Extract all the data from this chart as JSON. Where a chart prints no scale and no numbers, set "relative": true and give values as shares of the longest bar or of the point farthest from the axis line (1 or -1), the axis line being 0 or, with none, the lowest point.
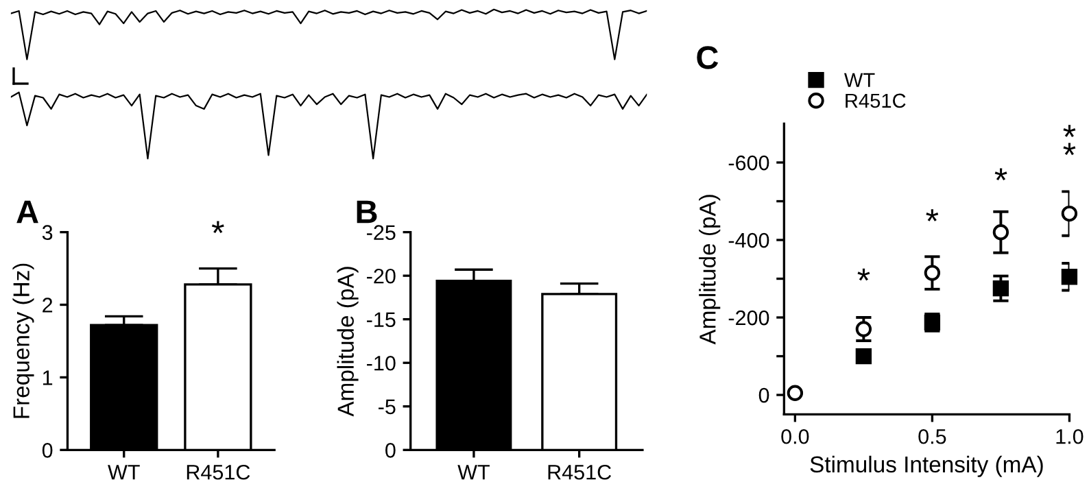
{
  "chart_data": [
    {
      "type": "line",
      "relative": true,
      "tick_labels": false,
      "color": "#000000",
      "categories": [
        null,
        null,
        null,
        null,
        null,
        null,
        null,
        null,
        null,
        null,
        null,
        null,
        null,
        null,
        null,
        null,
        null,
        null,
        null,
        null,
        null,
        null,
        null,
        null,
        null,
        null,
        null,
        null,
        null,
        null,
        null,
        null,
        null,
        null,
        null,
        null,
        null,
        null,
        null,
        null,
        null,
        null,
        null,
        null,
        null,
        null,
        null,
        null,
        null,
        null,
        null,
        null,
        null,
        null,
        null,
        null,
        null,
        null,
        null,
        null,
        null,
        null,
        null,
        null,
        null,
        null,
        null,
        null,
        null,
        null,
        null,
        null,
        null,
        null,
        null,
        null,
        null,
        null,
        null,
        null
      ],
      "values": [
        0.92,
        0.97,
        0,
        0.95,
        0.9,
        0.96,
        0.91,
        0.97,
        0.9,
        0.95,
        0.92,
        0.7,
        0.96,
        0.91,
        0.72,
        0.95,
        0.75,
        0.92,
        0.97,
        0.75,
        0.93,
        0.98,
        0.91,
        0.96,
        0.92,
        0.97,
        0.9,
        0.95,
        0.93,
        0.98,
        0.92,
        0.96,
        0.91,
        0.97,
        0.93,
        0.95,
        0.72,
        0.96,
        0.92,
        0.98,
        0.91,
        0.95,
        0.93,
        0.97,
        0.9,
        0.96,
        0.92,
        0.98,
        0.93,
        0.95,
        0.91,
        0.97,
        0.93,
        0.8,
        0.96,
        0.92,
        0.99,
        0.93,
        0.97,
        0.91,
        1.0,
        0.94,
        0.97,
        0.92,
        0.99,
        0.93,
        0.97,
        0.91,
        0.98,
        0.94,
        0.96,
        0.92,
        0.99,
        0.93,
        0.96,
        0,
        0.95,
        0.98,
        0.92,
        0.97
      ]
    },
    {
      "type": "line",
      "relative": true,
      "tick_labels": false,
      "color": "#000000",
      "categories": [
        null,
        null,
        null,
        null,
        null,
        null,
        null,
        null,
        null,
        null,
        null,
        null,
        null,
        null,
        null,
        null,
        null,
        null,
        null,
        null,
        null,
        null,
        null,
        null,
        null,
        null,
        null,
        null,
        null,
        null,
        null,
        null,
        null,
        null,
        null,
        null,
        null,
        null,
        null,
        null,
        null,
        null,
        null,
        null,
        null,
        null,
        null,
        null,
        null,
        null,
        null,
        null,
        null,
        null,
        null,
        null,
        null,
        null,
        null,
        null,
        null,
        null,
        null,
        null,
        null,
        null,
        null,
        null,
        null,
        null,
        null,
        null,
        null,
        null,
        null,
        null,
        null,
        null,
        null,
        null
      ],
      "values": [
        0.93,
        1.0,
        0.5,
        0.95,
        0.92,
        0.75,
        0.97,
        0.93,
        0.98,
        0.92,
        0.96,
        0.93,
        0.98,
        0.92,
        0.96,
        0.8,
        0.97,
        0,
        0.95,
        0.92,
        0.98,
        0.93,
        0.96,
        0.8,
        0.75,
        0.97,
        0.93,
        0.98,
        0.92,
        0.96,
        0.93,
        0.98,
        0.05,
        0.95,
        0.92,
        0.97,
        0.8,
        0.96,
        0.82,
        0.93,
        0.98,
        0.82,
        0.95,
        0.92,
        0.97,
        0,
        0.96,
        0.93,
        0.98,
        0.92,
        0.97,
        0.93,
        0.96,
        0.75,
        0.98,
        0.92,
        0.82,
        0.96,
        0.93,
        0.98,
        0.92,
        0.97,
        0.93,
        0.96,
        0.98,
        0.92,
        0.97,
        0.93,
        0.96,
        0.92,
        0.98,
        0.93,
        0.8,
        0.96,
        0.93,
        0.97,
        0.75,
        0.95,
        0.8,
        0.97
      ]
    },
    {
      "type": "bar",
      "title": "A",
      "ylabel": "Frequency (Hz)",
      "categories": [
        "WT",
        "R451C"
      ],
      "values": [
        1.72,
        2.28
      ],
      "errors": [
        [
          1.72,
          1.84
        ],
        [
          2.28,
          2.5
        ]
      ],
      "colors": [
        "#000000",
        "#ffffff"
      ],
      "ylim": [
        0,
        3
      ],
      "yticks": [
        0,
        1,
        2,
        3
      ],
      "annotations": [
        "*"
      ]
    },
    {
      "type": "bar",
      "title": "B",
      "ylabel": "Amplitude (pA)",
      "categories": [
        "WT",
        "R451C"
      ],
      "values": [
        -19.4,
        -17.9
      ],
      "errors": [
        [
          -20.7,
          -19.4
        ],
        [
          -19.1,
          -17.9
        ]
      ],
      "colors": [
        "#000000",
        "#ffffff"
      ],
      "ylim": [
        0,
        -25
      ],
      "yticks": [
        {
          "value": 0,
          "label": "0"
        },
        {
          "value": -5,
          "label": "-5"
        },
        {
          "value": -10,
          "label": "-10"
        },
        {
          "value": -15,
          "label": "-15"
        },
        {
          "value": -20,
          "label": "-20"
        },
        {
          "value": -25,
          "label": "-25"
        }
      ]
    },
    {
      "type": "scatter",
      "title": "C",
      "xlabel": "Stimulus Intensity (mA)",
      "ylabel": "Amplitude (pA)",
      "legend": "top left",
      "x": [
        0,
        0.25,
        0.5,
        0.75,
        1.0
      ],
      "series": [
        {
          "name": "WT",
          "color": "#000000",
          "marker": "square",
          "values": [
            null,
            -100,
            -187,
            -275,
            -305
          ],
          "errors": [
            null,
            12,
            22,
            32,
            35
          ]
        },
        {
          "name": "R451C",
          "color": "#ffffff",
          "marker": "circle",
          "values": [
            -5,
            -170,
            -315,
            -420,
            -468
          ],
          "errors": [
            null,
            30,
            42,
            53,
            57
          ]
        }
      ],
      "xlim": [
        -0.04,
        1.0
      ],
      "xticks": [
        {
          "value": 0,
          "label": "0.0"
        },
        {
          "value": 0.5,
          "label": "0.5"
        },
        {
          "value": 1.0,
          "label": "1.0"
        }
      ],
      "ylim": [
        50,
        -700
      ],
      "yticks": [
        {
          "value": 0,
          "label": "0"
        },
        {
          "value": -100,
          "label": null
        },
        {
          "value": -200,
          "label": "-200"
        },
        {
          "value": -300,
          "label": null
        },
        {
          "value": -400,
          "label": "-400"
        },
        {
          "value": -500,
          "label": null
        },
        {
          "value": -600,
          "label": "-600"
        }
      ],
      "annotations": [
        "*",
        "*",
        "*",
        "*",
        "*"
      ]
    }
  ]
}
